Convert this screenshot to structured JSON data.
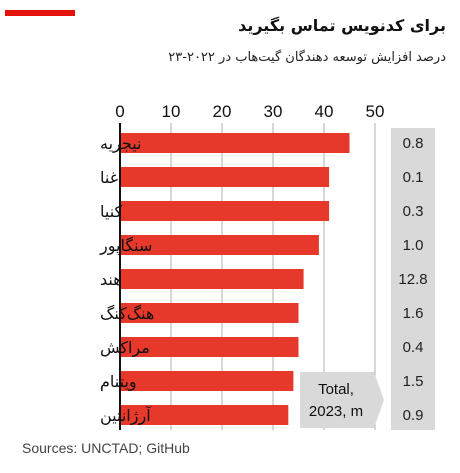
{
  "title": "برای کدنویس تماس بگیرید",
  "subtitle": "درصد افزایش توسعه دهندگان گیت‌هاب در ۲۰۲۲-۲۳",
  "source": "Sources: UNCTAD; GitHub",
  "colors": {
    "bar": "#e6392c",
    "accent_flag": "#e3120b",
    "total_box": "#d9d9d9",
    "grid": "#b0b0b0",
    "axis": "#111111"
  },
  "chart_data": {
    "type": "bar",
    "orientation": "horizontal",
    "title": "برای کدنویس تماس بگیرید",
    "subtitle": "درصد افزایش توسعه دهندگان گیت‌هاب در ۲۰۲۲-۲۳",
    "categories": [
      "نیجریه",
      "غنا",
      "کنیا",
      "سنگاپور",
      "هند",
      "هنگ‌کنگ",
      "مراکش",
      "ویتنام",
      "آرژانتین"
    ],
    "values": [
      45,
      41,
      41,
      39,
      36,
      35,
      35,
      34,
      33
    ],
    "xlim": [
      0,
      50
    ],
    "xticks": [
      0,
      10,
      20,
      30,
      40,
      50
    ],
    "tick_labels": [
      "0",
      "10",
      "20",
      "30",
      "40",
      "50"
    ],
    "grid": true,
    "totals": {
      "label_line1": "Total,",
      "label_line2": "2023, m",
      "values": [
        "0.8",
        "0.1",
        "0.3",
        "1.0",
        "12.8",
        "1.6",
        "0.4",
        "1.5",
        "0.9"
      ]
    }
  }
}
